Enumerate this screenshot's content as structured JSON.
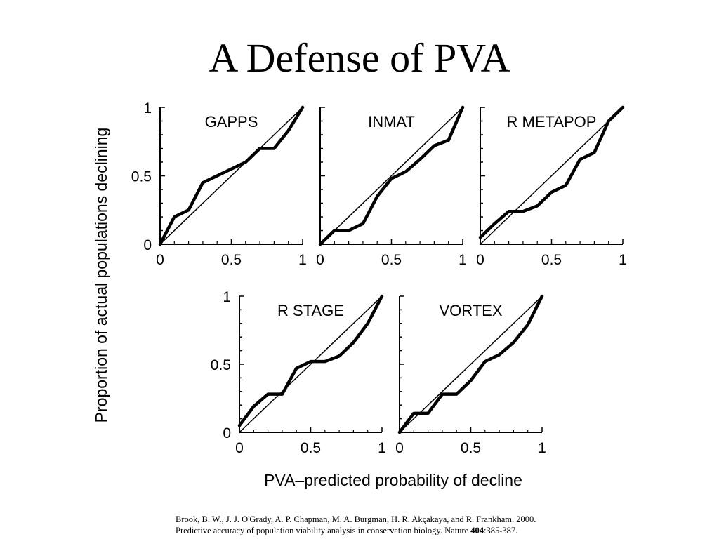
{
  "slide": {
    "title": "A Defense of PVA"
  },
  "citation": {
    "line1": "Brook, B. W., J. J. O'Grady, A. P. Chapman, M. A. Burgman, H. R. Akçakaya, and R. Frankham. 2000.",
    "line2_prefix": "Predictive accuracy of population viability analysis in conservation biology. Nature ",
    "volume": "404",
    "pages": ":385-387."
  },
  "figure": {
    "xlabel": "PVA–predicted probability of decline",
    "ylabel": "Proportion of actual populations declining"
  },
  "chart_data": [
    {
      "type": "line",
      "title": "GAPPS",
      "xlim": [
        0,
        1
      ],
      "ylim": [
        0,
        1
      ],
      "xticks": [
        "0",
        "0.5",
        "1"
      ],
      "yticks": [
        "0",
        "0.5",
        "1"
      ],
      "reference_line": [
        [
          0,
          0
        ],
        [
          1,
          1
        ]
      ],
      "x": [
        0,
        0.1,
        0.2,
        0.3,
        0.4,
        0.5,
        0.6,
        0.7,
        0.8,
        0.9,
        1.0
      ],
      "y": [
        0,
        0.2,
        0.25,
        0.45,
        0.5,
        0.55,
        0.6,
        0.7,
        0.7,
        0.83,
        1.0
      ]
    },
    {
      "type": "line",
      "title": "INMAT",
      "xlim": [
        0,
        1
      ],
      "ylim": [
        0,
        1
      ],
      "xticks": [
        "0",
        "0.5",
        "1"
      ],
      "yticks": [],
      "reference_line": [
        [
          0,
          0
        ],
        [
          1,
          1
        ]
      ],
      "x": [
        0,
        0.1,
        0.2,
        0.3,
        0.4,
        0.5,
        0.6,
        0.7,
        0.8,
        0.9,
        1.0
      ],
      "y": [
        0,
        0.1,
        0.1,
        0.15,
        0.35,
        0.48,
        0.53,
        0.62,
        0.72,
        0.76,
        1.0
      ]
    },
    {
      "type": "line",
      "title": "R METAPOP",
      "xlim": [
        0,
        1
      ],
      "ylim": [
        0,
        1
      ],
      "xticks": [
        "0",
        "0.5",
        "1"
      ],
      "yticks": [],
      "reference_line": [
        [
          0,
          0
        ],
        [
          1,
          1
        ]
      ],
      "x": [
        0,
        0.1,
        0.2,
        0.3,
        0.4,
        0.5,
        0.6,
        0.7,
        0.8,
        0.9,
        1.0
      ],
      "y": [
        0.05,
        0.15,
        0.24,
        0.24,
        0.28,
        0.38,
        0.43,
        0.62,
        0.67,
        0.9,
        1.0
      ]
    },
    {
      "type": "line",
      "title": "R STAGE",
      "xlim": [
        0,
        1
      ],
      "ylim": [
        0,
        1
      ],
      "xticks": [
        "0",
        "0.5",
        "1"
      ],
      "yticks": [
        "0",
        "0.5",
        "1"
      ],
      "reference_line": [
        [
          0,
          0
        ],
        [
          1,
          1
        ]
      ],
      "x": [
        0,
        0.1,
        0.2,
        0.3,
        0.4,
        0.5,
        0.6,
        0.7,
        0.8,
        0.9,
        1.0
      ],
      "y": [
        0.05,
        0.19,
        0.28,
        0.28,
        0.47,
        0.52,
        0.52,
        0.56,
        0.66,
        0.8,
        1.0
      ]
    },
    {
      "type": "line",
      "title": "VORTEX",
      "xlim": [
        0,
        1
      ],
      "ylim": [
        0,
        1
      ],
      "xticks": [
        "0",
        "0.5",
        "1"
      ],
      "yticks": [],
      "reference_line": [
        [
          0,
          0
        ],
        [
          1,
          1
        ]
      ],
      "x": [
        0,
        0.1,
        0.2,
        0.3,
        0.4,
        0.5,
        0.6,
        0.7,
        0.8,
        0.9,
        1.0
      ],
      "y": [
        0,
        0.14,
        0.14,
        0.28,
        0.28,
        0.38,
        0.52,
        0.57,
        0.66,
        0.79,
        1.0
      ]
    }
  ]
}
